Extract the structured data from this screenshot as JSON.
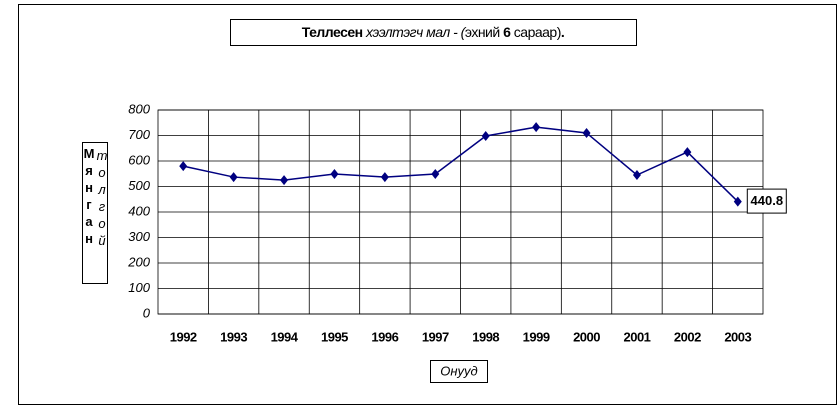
{
  "chart_data": {
    "type": "line",
    "title": [
      "Теллесен",
      "хээлтэгч мал - (",
      "эхний",
      "6",
      "сараар)",
      "."
    ],
    "y_label": [
      "Мянган",
      "толгой"
    ],
    "x_label": "Онууд",
    "categories": [
      "1992",
      "1993",
      "1994",
      "1995",
      "1996",
      "1997",
      "1998",
      "1999",
      "2000",
      "2001",
      "2002",
      "2003"
    ],
    "values": [
      580,
      537,
      525,
      549,
      537,
      549,
      698,
      733,
      710,
      545,
      635,
      440.8
    ],
    "value_labels": [
      null,
      null,
      null,
      null,
      null,
      null,
      null,
      null,
      null,
      null,
      null,
      "440.8"
    ],
    "color": "#000080",
    "ylim": [
      0,
      800
    ],
    "yticks": [
      0,
      100,
      200,
      300,
      400,
      500,
      600,
      700,
      800
    ],
    "grid": true
  }
}
